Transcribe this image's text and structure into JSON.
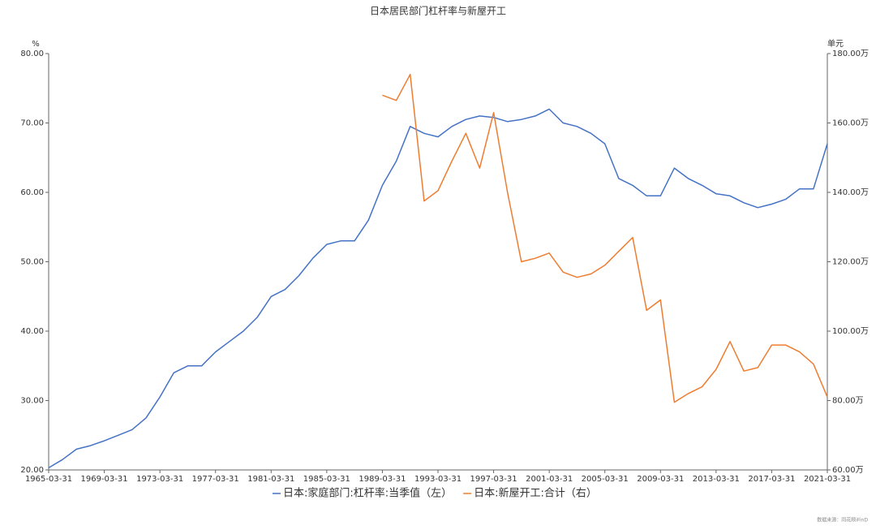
{
  "chart_data": {
    "type": "line",
    "title": "日本居民部门杠杆率与新屋开工",
    "ylabel": "%",
    "y2label": "单元",
    "source": "数据来源：同花顺iFinD",
    "x": [
      "1965-03-31",
      "1966-03-31",
      "1967-03-31",
      "1968-03-31",
      "1969-03-31",
      "1970-03-31",
      "1971-03-31",
      "1972-03-31",
      "1973-03-31",
      "1974-03-31",
      "1975-03-31",
      "1976-03-31",
      "1977-03-31",
      "1978-03-31",
      "1979-03-31",
      "1980-03-31",
      "1981-03-31",
      "1982-03-31",
      "1983-03-31",
      "1984-03-31",
      "1985-03-31",
      "1986-03-31",
      "1987-03-31",
      "1988-03-31",
      "1989-03-31",
      "1990-03-31",
      "1991-03-31",
      "1992-03-31",
      "1993-03-31",
      "1994-03-31",
      "1995-03-31",
      "1996-03-31",
      "1997-03-31",
      "1998-03-31",
      "1999-03-31",
      "2000-03-31",
      "2001-03-31",
      "2002-03-31",
      "2003-03-31",
      "2004-03-31",
      "2005-03-31",
      "2006-03-31",
      "2007-03-31",
      "2008-03-31",
      "2009-03-31",
      "2010-03-31",
      "2011-03-31",
      "2012-03-31",
      "2013-03-31",
      "2014-03-31",
      "2015-03-31",
      "2016-03-31",
      "2017-03-31",
      "2018-03-31",
      "2019-03-31",
      "2020-03-31",
      "2021-03-31"
    ],
    "series": [
      {
        "name": "日本:家庭部门:杠杆率:当季值（左）",
        "color": "#4472c4",
        "values": [
          20.3,
          21.5,
          23,
          23.5,
          24.2,
          25,
          25.8,
          27.5,
          30.5,
          34,
          35,
          35,
          37,
          38.5,
          40,
          42,
          45,
          46,
          48,
          50.5,
          52.5,
          53,
          53,
          56,
          61,
          64.5,
          69.5,
          68.5,
          68,
          69.5,
          70.5,
          71,
          70.8,
          70.2,
          70.5,
          71,
          72,
          70,
          69.5,
          68.5,
          67,
          62,
          61,
          59.5,
          59.5,
          63.5,
          62,
          61,
          59.8,
          59.5,
          58.5,
          57.8,
          58.3,
          59,
          60.5,
          60.5,
          67
        ]
      },
      {
        "name": "日本:新屋开工:合计（右）",
        "color": "#ed7d31",
        "axis": "y2",
        "values": [
          null,
          null,
          null,
          null,
          null,
          null,
          null,
          null,
          null,
          null,
          null,
          null,
          null,
          null,
          null,
          null,
          null,
          null,
          null,
          null,
          null,
          null,
          null,
          null,
          168,
          166.5,
          174,
          137.5,
          140.5,
          149,
          157,
          147,
          163,
          140,
          120,
          121,
          122.5,
          117,
          115.5,
          116.5,
          119,
          123,
          127,
          106,
          109,
          79.5,
          82,
          84,
          89,
          97,
          88.5,
          89.5,
          96,
          96,
          94,
          90.5,
          81
        ]
      }
    ],
    "xlim": [
      "1965-03-31",
      "2021-03-31"
    ],
    "xticks": [
      "1965-03-31",
      "1969-03-31",
      "1973-03-31",
      "1977-03-31",
      "1981-03-31",
      "1985-03-31",
      "1989-03-31",
      "1993-03-31",
      "1997-03-31",
      "2001-03-31",
      "2005-03-31",
      "2009-03-31",
      "2013-03-31",
      "2017-03-31",
      "2021-03-31"
    ],
    "ylim": [
      20,
      80
    ],
    "yticks": [
      {
        "value": 20,
        "label": "20.00"
      },
      {
        "value": 30,
        "label": "30.00"
      },
      {
        "value": 40,
        "label": "40.00"
      },
      {
        "value": 50,
        "label": "50.00"
      },
      {
        "value": 60,
        "label": "60.00"
      },
      {
        "value": 70,
        "label": "70.00"
      },
      {
        "value": 80,
        "label": "80.00"
      }
    ],
    "y2lim": [
      60,
      180
    ],
    "y2ticks": [
      {
        "value": 60,
        "label": "60.00万"
      },
      {
        "value": 80,
        "label": "80.00万"
      },
      {
        "value": 100,
        "label": "100.00万"
      },
      {
        "value": 120,
        "label": "120.00万"
      },
      {
        "value": 140,
        "label": "140.00万"
      },
      {
        "value": 160,
        "label": "160.00万"
      },
      {
        "value": 180,
        "label": "180.00万"
      }
    ],
    "legend": "bottom"
  }
}
